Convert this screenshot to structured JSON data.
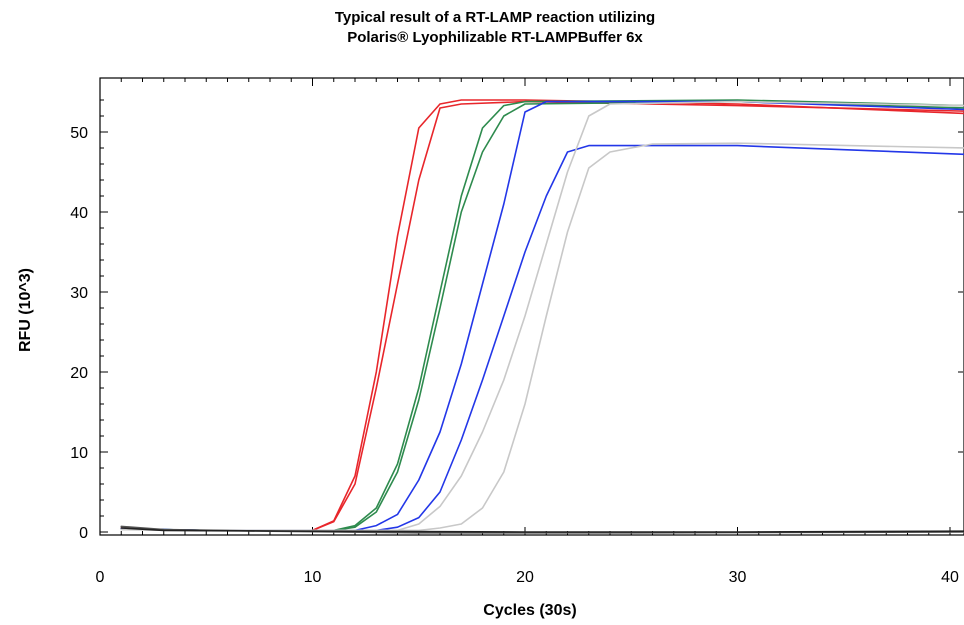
{
  "chart_data": {
    "type": "line",
    "title": "Typical result of a RT-LAMP reaction utilizing",
    "subtitle": "Polaris® Lyophilizable RT-LAMPBuffer 6x",
    "xlabel": "Cycles (30s)",
    "ylabel": "RFU (10^3)",
    "xlim": [
      0,
      40.8
    ],
    "ylim": [
      -1,
      56
    ],
    "xticks": [
      0,
      10,
      20,
      30,
      40
    ],
    "yticks": [
      0,
      10,
      20,
      30,
      40,
      50
    ],
    "grid": false,
    "legend": "none",
    "series": [
      {
        "color": "#e8262b",
        "points": [
          [
            1,
            0.5
          ],
          [
            2,
            0.3
          ],
          [
            5,
            0.2
          ],
          [
            10,
            0.2
          ],
          [
            11,
            1.4
          ],
          [
            12,
            7.0
          ],
          [
            13,
            20.0
          ],
          [
            14,
            37.0
          ],
          [
            15,
            50.5
          ],
          [
            16,
            53.5
          ],
          [
            17,
            54.0
          ],
          [
            20,
            54.0
          ],
          [
            30,
            53.5
          ],
          [
            40.8,
            52.3
          ]
        ]
      },
      {
        "color": "#e8262b",
        "points": [
          [
            1,
            0.4
          ],
          [
            2,
            0.3
          ],
          [
            5,
            0.2
          ],
          [
            10,
            0.2
          ],
          [
            11,
            1.3
          ],
          [
            12,
            6.0
          ],
          [
            13,
            18.0
          ],
          [
            14,
            31.0
          ],
          [
            15,
            44.0
          ],
          [
            16,
            53.0
          ],
          [
            17,
            53.5
          ],
          [
            20,
            53.8
          ],
          [
            30,
            53.3
          ],
          [
            40.8,
            52.6
          ]
        ]
      },
      {
        "color": "#2e8b4e",
        "points": [
          [
            1,
            0.4
          ],
          [
            5,
            0.2
          ],
          [
            11,
            0.2
          ],
          [
            12,
            0.8
          ],
          [
            13,
            3.0
          ],
          [
            14,
            8.5
          ],
          [
            15,
            18.0
          ],
          [
            16,
            30.0
          ],
          [
            17,
            42.0
          ],
          [
            18,
            50.5
          ],
          [
            19,
            53.3
          ],
          [
            20,
            53.8
          ],
          [
            30,
            54.0
          ],
          [
            40.8,
            53.3
          ]
        ]
      },
      {
        "color": "#2e8b4e",
        "points": [
          [
            1,
            0.4
          ],
          [
            5,
            0.2
          ],
          [
            11,
            0.2
          ],
          [
            12,
            0.6
          ],
          [
            13,
            2.5
          ],
          [
            14,
            7.5
          ],
          [
            15,
            16.5
          ],
          [
            16,
            28.0
          ],
          [
            17,
            40.0
          ],
          [
            18,
            47.5
          ],
          [
            19,
            52.0
          ],
          [
            20,
            53.5
          ],
          [
            30,
            53.8
          ],
          [
            40.8,
            53.0
          ]
        ]
      },
      {
        "color": "#2337e8",
        "points": [
          [
            1,
            0.4
          ],
          [
            5,
            0.2
          ],
          [
            12,
            0.2
          ],
          [
            13,
            0.8
          ],
          [
            14,
            2.2
          ],
          [
            15,
            6.5
          ],
          [
            16,
            12.5
          ],
          [
            17,
            21.0
          ],
          [
            18,
            31.0
          ],
          [
            19,
            41.0
          ],
          [
            20,
            52.5
          ],
          [
            21,
            53.8
          ],
          [
            30,
            53.8
          ],
          [
            40.8,
            52.8
          ]
        ]
      },
      {
        "color": "#2337e8",
        "points": [
          [
            1,
            0.4
          ],
          [
            5,
            0.2
          ],
          [
            13,
            0.2
          ],
          [
            14,
            0.6
          ],
          [
            15,
            1.8
          ],
          [
            16,
            5.0
          ],
          [
            17,
            11.5
          ],
          [
            18,
            19.0
          ],
          [
            19,
            27.0
          ],
          [
            20,
            35.0
          ],
          [
            21,
            42.0
          ],
          [
            22,
            47.5
          ],
          [
            23,
            48.3
          ],
          [
            30,
            48.3
          ],
          [
            40.8,
            47.2
          ]
        ]
      },
      {
        "color": "#c8c8c8",
        "points": [
          [
            1,
            0.3
          ],
          [
            5,
            0.2
          ],
          [
            14,
            0.2
          ],
          [
            15,
            1.0
          ],
          [
            16,
            3.2
          ],
          [
            17,
            7.0
          ],
          [
            18,
            12.5
          ],
          [
            19,
            19.0
          ],
          [
            20,
            27.0
          ],
          [
            21,
            36.0
          ],
          [
            22,
            45.0
          ],
          [
            23,
            52.0
          ],
          [
            24,
            53.5
          ],
          [
            30,
            53.8
          ],
          [
            40.8,
            53.3
          ]
        ]
      },
      {
        "color": "#c8c8c8",
        "points": [
          [
            1,
            0.3
          ],
          [
            5,
            0.2
          ],
          [
            15,
            0.2
          ],
          [
            16,
            0.5
          ],
          [
            17,
            1.0
          ],
          [
            18,
            3.0
          ],
          [
            19,
            7.5
          ],
          [
            20,
            16.0
          ],
          [
            21,
            27.0
          ],
          [
            22,
            37.5
          ],
          [
            23,
            45.5
          ],
          [
            24,
            47.5
          ],
          [
            26,
            48.5
          ],
          [
            30,
            48.6
          ],
          [
            40.8,
            48.0
          ]
        ]
      },
      {
        "color": "#555555",
        "points": [
          [
            1,
            0.7
          ],
          [
            3,
            0.3
          ],
          [
            8,
            0.1
          ],
          [
            15,
            -0.1
          ],
          [
            25,
            -0.1
          ],
          [
            40.8,
            0.0
          ]
        ]
      },
      {
        "color": "#222222",
        "points": [
          [
            1,
            0.5
          ],
          [
            3,
            0.2
          ],
          [
            10,
            0.1
          ],
          [
            20,
            0.0
          ],
          [
            30,
            0.0
          ],
          [
            40.8,
            0.1
          ]
        ]
      }
    ]
  }
}
